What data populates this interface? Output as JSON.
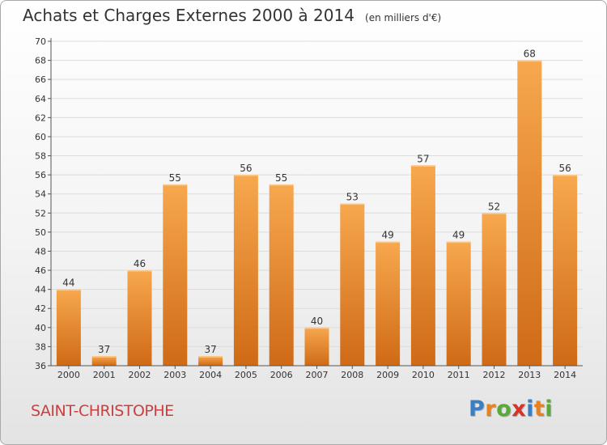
{
  "title": {
    "main": "Achats et Charges Externes 2000 à 2014",
    "unit": "(en milliers d'€)"
  },
  "location": "SAINT-CHRISTOPHE",
  "logo": {
    "text": "Proxiti",
    "letters": [
      {
        "ch": "P",
        "color": "#3a7fc4"
      },
      {
        "ch": "r",
        "color": "#e8821e"
      },
      {
        "ch": "o",
        "color": "#5aaa3a"
      },
      {
        "ch": "x",
        "color": "#d8332a"
      },
      {
        "ch": "i",
        "color": "#3a7fc4"
      },
      {
        "ch": "t",
        "color": "#e8821e"
      },
      {
        "ch": "i",
        "color": "#5aaa3a"
      }
    ]
  },
  "colors": {
    "bar_light": "#f7a84e",
    "bar_dark": "#cf6a16",
    "label": "#333333",
    "location": "#cc3f3f"
  },
  "chart_data": {
    "type": "bar",
    "categories": [
      "2000",
      "2001",
      "2002",
      "2003",
      "2004",
      "2005",
      "2006",
      "2007",
      "2008",
      "2009",
      "2010",
      "2011",
      "2012",
      "2013",
      "2014"
    ],
    "values": [
      44,
      37,
      46,
      55,
      37,
      56,
      55,
      40,
      53,
      49,
      57,
      49,
      52,
      68,
      56
    ],
    "ylim": [
      36,
      70
    ],
    "yticks": [
      36,
      38,
      40,
      42,
      44,
      46,
      48,
      50,
      52,
      54,
      56,
      58,
      60,
      62,
      64,
      66,
      68,
      70
    ],
    "grid": true,
    "xlabel": "",
    "ylabel": ""
  }
}
